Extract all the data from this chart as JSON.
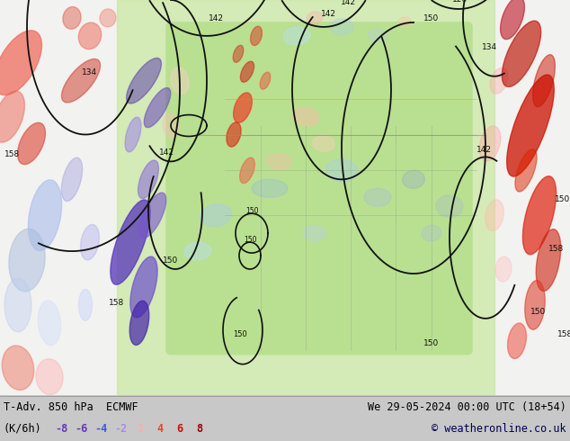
{
  "title_left": "T-Adv. 850 hPa  ECMWF",
  "title_right": "We 29-05-2024 00:00 UTC (18+54)",
  "unit_label": "(K/6h)",
  "legend_values": [
    -8,
    -6,
    -4,
    -2,
    2,
    4,
    6,
    8
  ],
  "legend_colors_neg": [
    "#6633bb",
    "#6633bb",
    "#4455dd",
    "#aa88ee"
  ],
  "legend_colors_pos": [
    "#ffaaaa",
    "#ee4422",
    "#cc1100",
    "#990000"
  ],
  "copyright": "© weatheronline.co.uk",
  "bg_color": "#c8c8c8",
  "map_ocean_color": "#f0f0f8",
  "map_land_light": "#c8e8b0",
  "map_land_mid": "#a0d080",
  "bottom_bar_color": "#c8c8c8",
  "title_color": "#000000",
  "fig_width": 6.34,
  "fig_height": 4.9,
  "dpi": 100,
  "contour_color": "#111111",
  "cold_adv_strong": "#4400cc",
  "cold_adv_med": "#8855dd",
  "cold_adv_light": "#aabbff",
  "cold_adv_vlight": "#ccddff",
  "warm_adv_strong": "#cc1100",
  "warm_adv_med": "#ee3311",
  "warm_adv_light": "#ffaaaa",
  "warm_adv_vlight": "#ffcccc"
}
